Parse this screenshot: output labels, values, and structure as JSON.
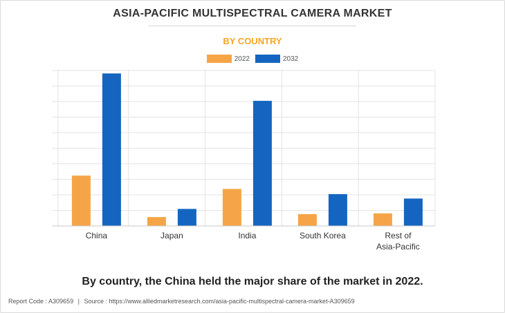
{
  "header": {
    "title": "ASIA-PACIFIC MULTISPECTRAL CAMERA MARKET",
    "subtitle": "BY COUNTRY"
  },
  "caption": "By country, the China held the major share of the market in 2022.",
  "footer": {
    "report_code": "Report Code : A309659",
    "separator": "|",
    "source": "Source : https://www.alliedmarketresearch.com/asia-pacific-multispectral-camera-market-A309659"
  },
  "colors": {
    "series_2022": "#f5a547",
    "series_2032": "#1565c0",
    "grid": "#e3e3e3",
    "axis": "#c8c8c8"
  },
  "chart_data": {
    "type": "bar",
    "title": "ASIA-PACIFIC MULTISPECTRAL CAMERA MARKET",
    "subtitle": "BY COUNTRY",
    "categories": [
      "China",
      "Japan",
      "India",
      "South Korea",
      "Rest of Asia-Pacific"
    ],
    "category_lines": [
      [
        "China"
      ],
      [
        "Japan"
      ],
      [
        "India"
      ],
      [
        "South Korea"
      ],
      [
        "Rest of",
        "Asia-Pacific"
      ]
    ],
    "series": [
      {
        "name": "2022",
        "color": "#f5a547",
        "values": [
          3.4,
          0.6,
          2.5,
          0.8,
          0.85
        ]
      },
      {
        "name": "2032",
        "color": "#1565c0",
        "values": [
          10.3,
          1.15,
          8.45,
          2.15,
          1.85
        ]
      }
    ],
    "ylim": [
      0,
      10.5
    ],
    "y_gridlines": 10,
    "y_tick_labels_shown": false,
    "grid": true,
    "legend": "top-center",
    "xlabel": "",
    "ylabel": ""
  }
}
